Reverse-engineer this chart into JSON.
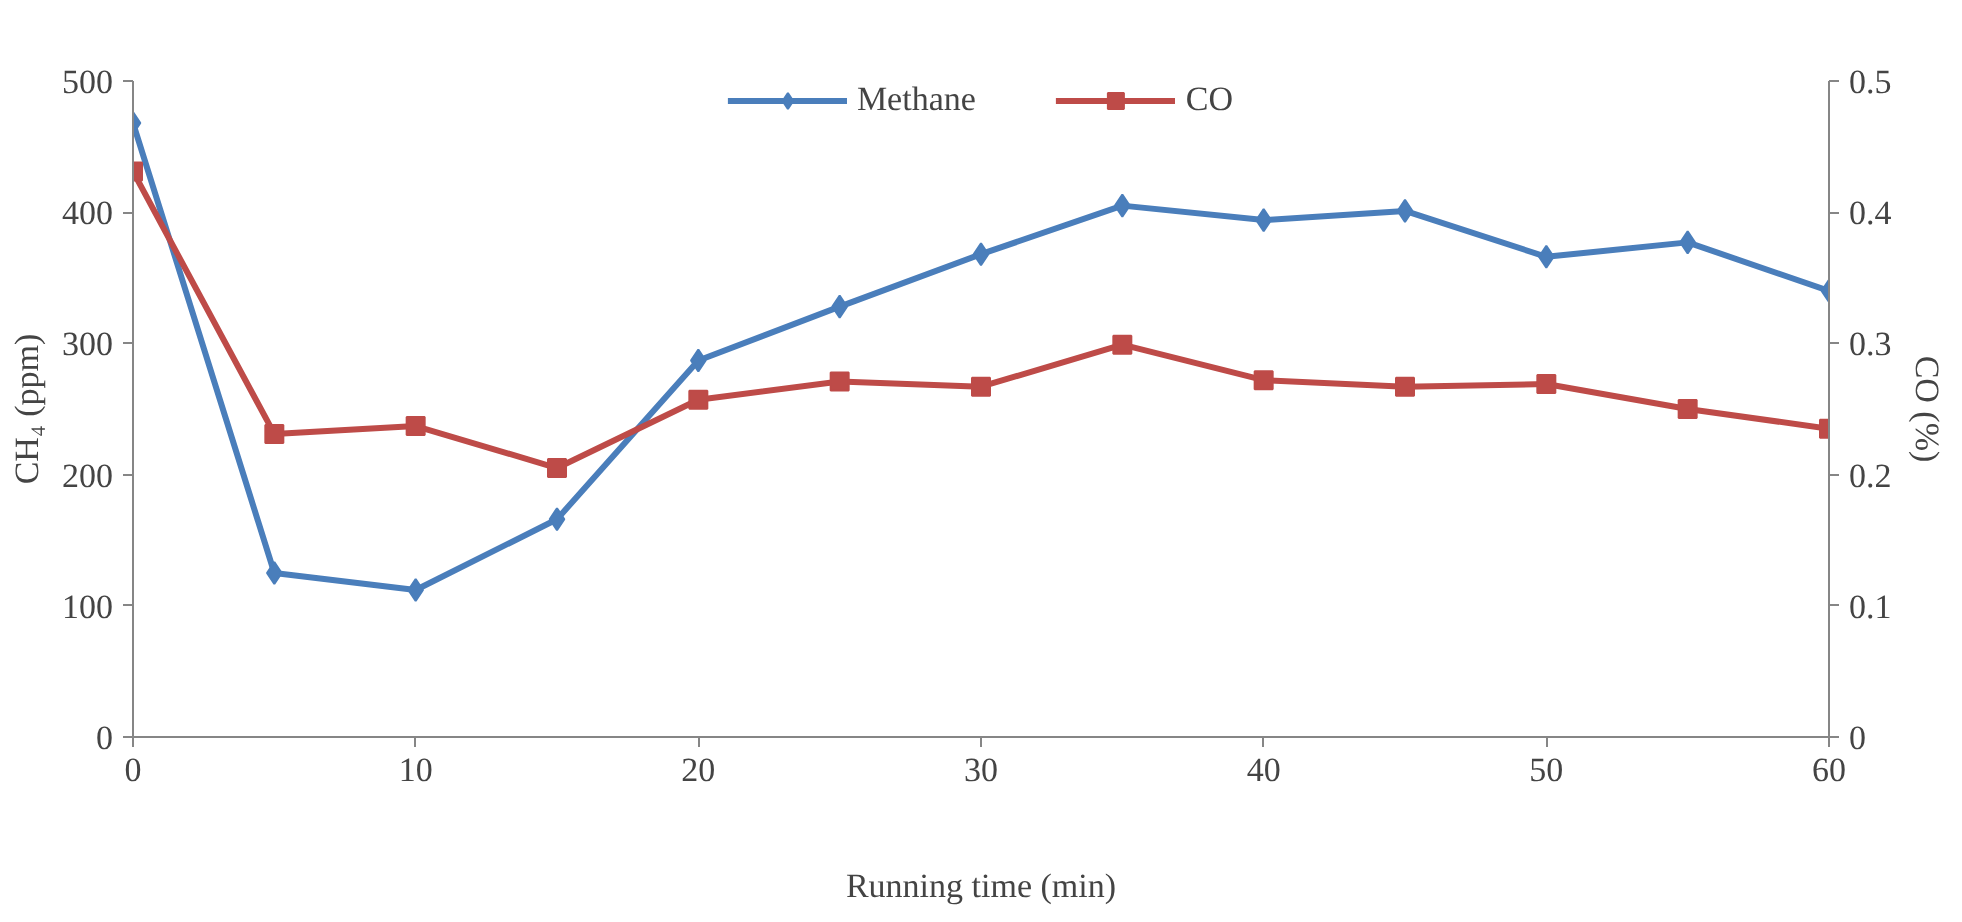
{
  "chart_data": {
    "type": "line",
    "xlabel": "Running time (min)",
    "ylabel": "CH₄ (ppm)",
    "y2label": "CO (%)",
    "x": [
      0,
      5,
      10,
      15,
      20,
      25,
      30,
      35,
      40,
      45,
      50,
      55,
      60
    ],
    "series": [
      {
        "name": "Methane",
        "color": "#4a7ebb",
        "marker": "diamond",
        "values": [
          468,
          125,
          112,
          166,
          287,
          328,
          368,
          405,
          394,
          401,
          366,
          377,
          340
        ]
      },
      {
        "name": "CO",
        "color": "#be4b48",
        "marker": "square",
        "axis": "y2",
        "values": [
          0.431,
          0.231,
          0.237,
          0.205,
          0.257,
          0.271,
          0.267,
          0.299,
          0.272,
          0.267,
          0.269,
          0.25,
          0.235
        ]
      }
    ],
    "xlim": [
      0,
      60
    ],
    "xticks": [
      0,
      10,
      20,
      30,
      40,
      50,
      60
    ],
    "ylim": [
      0,
      500
    ],
    "yticks": [
      0,
      100,
      200,
      300,
      400,
      500
    ],
    "y2lim": [
      0,
      0.5
    ],
    "y2ticks": [
      0,
      0.1,
      0.2,
      0.3,
      0.4,
      0.5
    ],
    "legend": "top",
    "line_style": "solid"
  }
}
